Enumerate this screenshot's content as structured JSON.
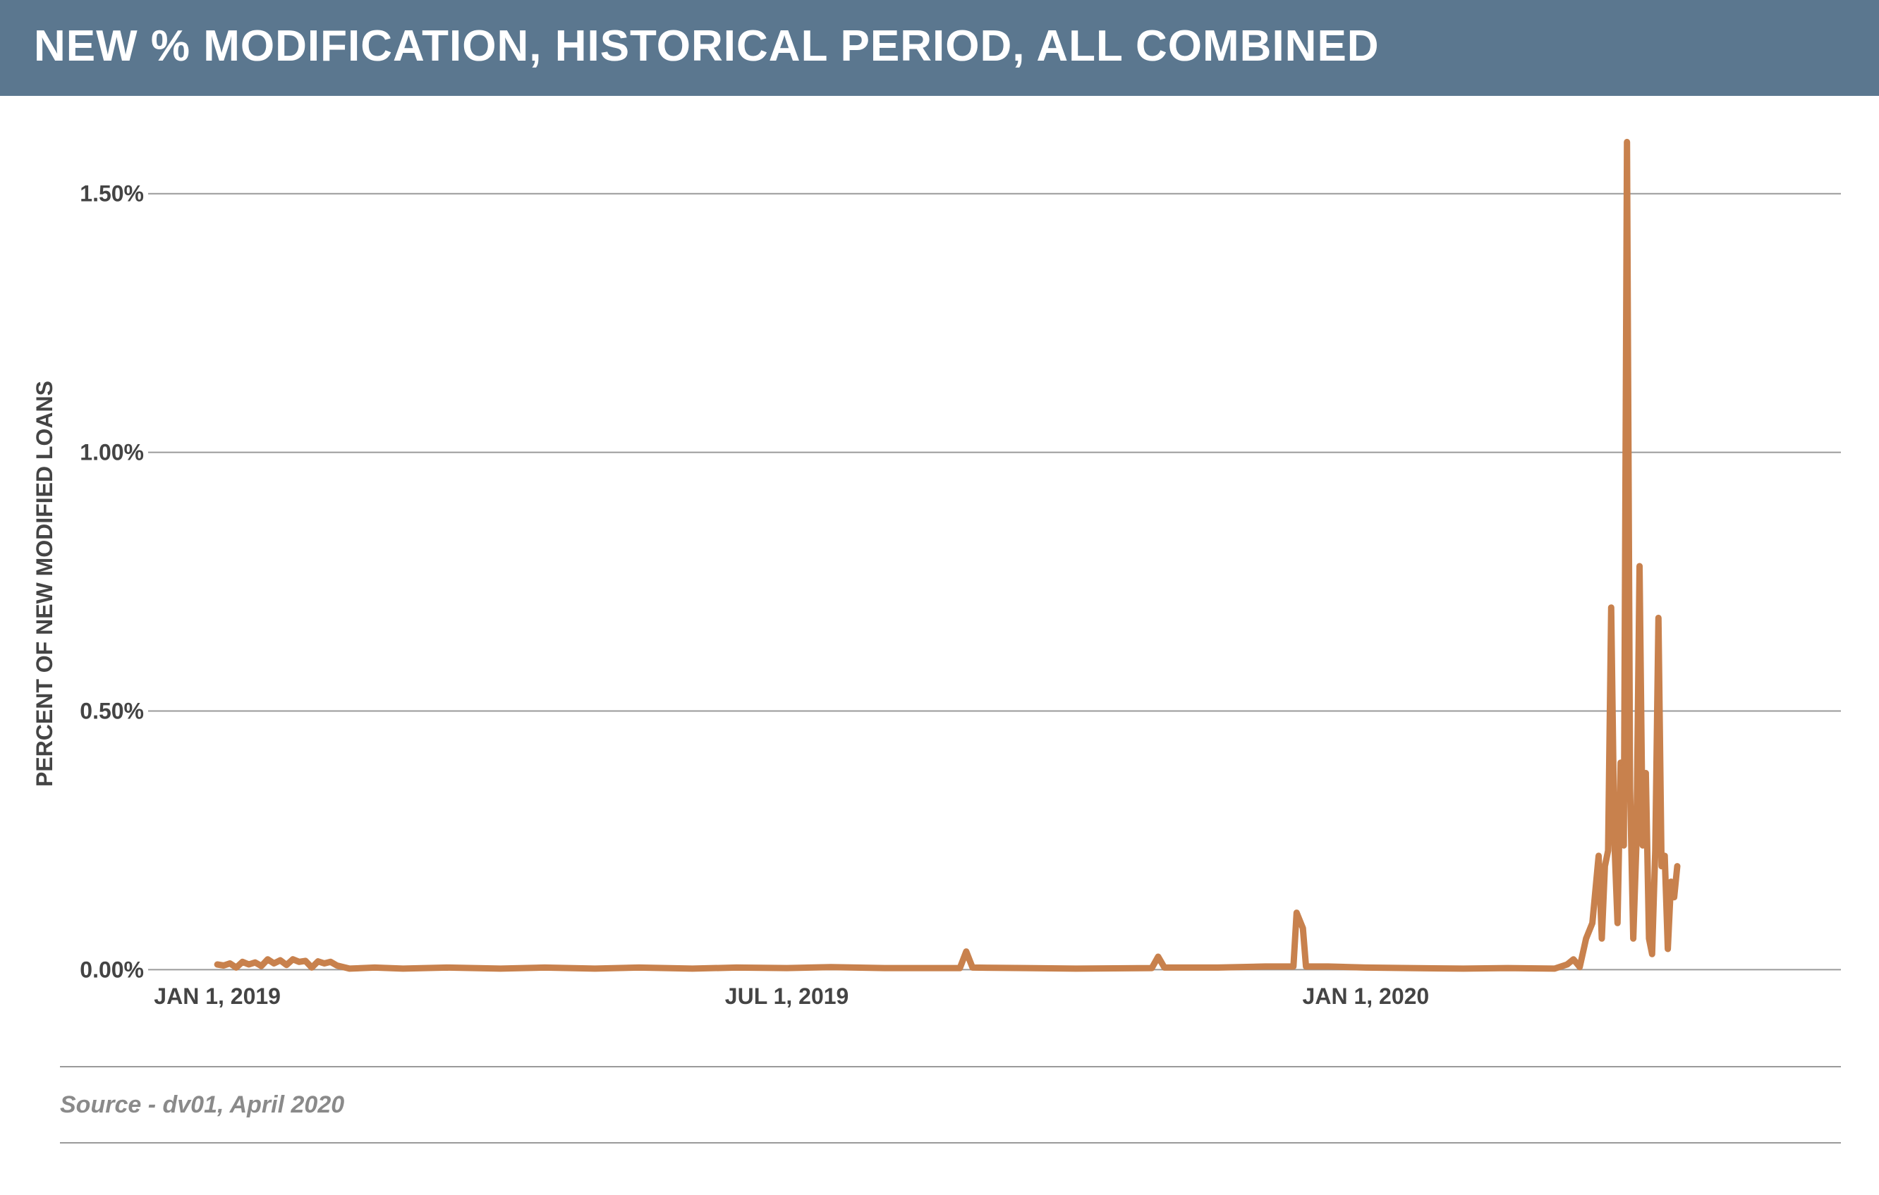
{
  "header": {
    "title": "NEW % MODIFICATION, HISTORICAL PERIOD, ALL COMBINED"
  },
  "footer": {
    "source": "Source - dv01, April 2020"
  },
  "colors": {
    "header_bg": "#5b778f",
    "line": "#c8814d",
    "grid": "#9a9a9a",
    "axis_text": "#444444"
  },
  "chart_data": {
    "type": "line",
    "title": "NEW % MODIFICATION, HISTORICAL PERIOD, ALL COMBINED",
    "xlabel": "",
    "ylabel": "PERCENT OF NEW MODIFIED LOANS",
    "x_ticks": [
      {
        "date": "2019-01-01",
        "label": "JAN 1, 2019"
      },
      {
        "date": "2019-07-01",
        "label": "JUL 1, 2019"
      },
      {
        "date": "2020-01-01",
        "label": "JAN 1, 2020"
      }
    ],
    "y_ticks": [
      {
        "value": 0.0,
        "label": "0.00%"
      },
      {
        "value": 0.5,
        "label": "0.50%"
      },
      {
        "value": 1.0,
        "label": "1.00%"
      },
      {
        "value": 1.5,
        "label": "1.50%"
      }
    ],
    "ylim": [
      -0.02,
      1.67
    ],
    "xlim": [
      "2018-12-10",
      "2020-05-31"
    ],
    "grid": true,
    "legend": "none",
    "series": [
      {
        "color": "#c8814d",
        "points": [
          [
            "2019-01-01",
            0.01
          ],
          [
            "2019-01-03",
            0.008
          ],
          [
            "2019-01-05",
            0.012
          ],
          [
            "2019-01-07",
            0.004
          ],
          [
            "2019-01-09",
            0.015
          ],
          [
            "2019-01-11",
            0.01
          ],
          [
            "2019-01-13",
            0.014
          ],
          [
            "2019-01-15",
            0.007
          ],
          [
            "2019-01-17",
            0.02
          ],
          [
            "2019-01-19",
            0.012
          ],
          [
            "2019-01-21",
            0.018
          ],
          [
            "2019-01-23",
            0.009
          ],
          [
            "2019-01-25",
            0.02
          ],
          [
            "2019-01-27",
            0.015
          ],
          [
            "2019-01-29",
            0.017
          ],
          [
            "2019-01-31",
            0.004
          ],
          [
            "2019-02-02",
            0.016
          ],
          [
            "2019-02-04",
            0.012
          ],
          [
            "2019-02-06",
            0.015
          ],
          [
            "2019-02-08",
            0.008
          ],
          [
            "2019-02-12",
            0.002
          ],
          [
            "2019-02-20",
            0.004
          ],
          [
            "2019-03-01",
            0.002
          ],
          [
            "2019-03-15",
            0.004
          ],
          [
            "2019-04-01",
            0.002
          ],
          [
            "2019-04-15",
            0.004
          ],
          [
            "2019-05-01",
            0.002
          ],
          [
            "2019-05-15",
            0.004
          ],
          [
            "2019-06-01",
            0.002
          ],
          [
            "2019-06-15",
            0.004
          ],
          [
            "2019-07-01",
            0.003
          ],
          [
            "2019-07-15",
            0.005
          ],
          [
            "2019-08-01",
            0.003
          ],
          [
            "2019-08-25",
            0.003
          ],
          [
            "2019-08-27",
            0.035
          ],
          [
            "2019-08-29",
            0.004
          ],
          [
            "2019-09-15",
            0.003
          ],
          [
            "2019-10-01",
            0.002
          ],
          [
            "2019-10-25",
            0.003
          ],
          [
            "2019-10-27",
            0.025
          ],
          [
            "2019-10-29",
            0.004
          ],
          [
            "2019-11-15",
            0.004
          ],
          [
            "2019-11-30",
            0.006
          ],
          [
            "2019-12-09",
            0.006
          ],
          [
            "2019-12-10",
            0.11
          ],
          [
            "2019-12-12",
            0.08
          ],
          [
            "2019-12-13",
            0.006
          ],
          [
            "2019-12-20",
            0.006
          ],
          [
            "2020-01-01",
            0.004
          ],
          [
            "2020-01-15",
            0.003
          ],
          [
            "2020-02-01",
            0.002
          ],
          [
            "2020-02-15",
            0.003
          ],
          [
            "2020-03-01",
            0.002
          ],
          [
            "2020-03-05",
            0.01
          ],
          [
            "2020-03-07",
            0.02
          ],
          [
            "2020-03-09",
            0.005
          ],
          [
            "2020-03-11",
            0.06
          ],
          [
            "2020-03-13",
            0.09
          ],
          [
            "2020-03-15",
            0.22
          ],
          [
            "2020-03-16",
            0.06
          ],
          [
            "2020-03-17",
            0.2
          ],
          [
            "2020-03-18",
            0.23
          ],
          [
            "2020-03-19",
            0.7
          ],
          [
            "2020-03-20",
            0.25
          ],
          [
            "2020-03-21",
            0.09
          ],
          [
            "2020-03-22",
            0.4
          ],
          [
            "2020-03-23",
            0.24
          ],
          [
            "2020-03-24",
            1.6
          ],
          [
            "2020-03-25",
            0.35
          ],
          [
            "2020-03-26",
            0.06
          ],
          [
            "2020-03-27",
            0.24
          ],
          [
            "2020-03-28",
            0.78
          ],
          [
            "2020-03-29",
            0.24
          ],
          [
            "2020-03-30",
            0.38
          ],
          [
            "2020-03-31",
            0.06
          ],
          [
            "2020-04-01",
            0.03
          ],
          [
            "2020-04-02",
            0.23
          ],
          [
            "2020-04-03",
            0.68
          ],
          [
            "2020-04-04",
            0.2
          ],
          [
            "2020-04-05",
            0.22
          ],
          [
            "2020-04-06",
            0.04
          ],
          [
            "2020-04-07",
            0.17
          ],
          [
            "2020-04-08",
            0.14
          ],
          [
            "2020-04-09",
            0.2
          ]
        ]
      }
    ]
  }
}
